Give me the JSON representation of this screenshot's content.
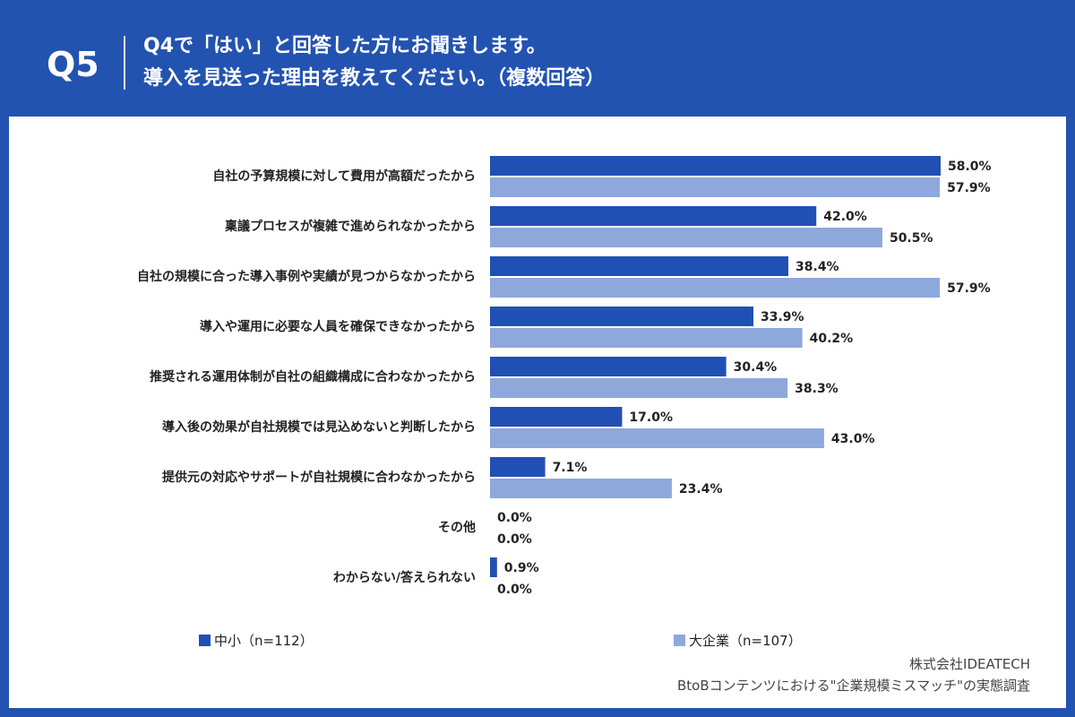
{
  "header": {
    "q_number": "Q5",
    "title_line1": "Q4で「はい」と回答した方にお聞きします。",
    "title_line2": "導入を見送った理由を教えてください。（複数回答）"
  },
  "chart_data": {
    "type": "bar",
    "orientation": "horizontal",
    "xlim": [
      0,
      100
    ],
    "grid": false,
    "legend_placement": "bottom",
    "categories": [
      "自社の予算規模に対して費用が高額だったから",
      "稟議プロセスが複雑で進められなかったから",
      "自社の規模に合った導入事例や実績が見つからなかったから",
      "導入や運用に必要な人員を確保できなかったから",
      "推奨される運用体制が自社の組織構成に合わなかったから",
      "導入後の効果が自社規模では見込めないと判断したから",
      "提供元の対応やサポートが自社規模に合わなかったから",
      "その他",
      "わからない/答えられない"
    ],
    "series": [
      {
        "name": "中小（n=112）",
        "color": "#2150b4",
        "values": [
          58.0,
          42.0,
          38.4,
          33.9,
          30.4,
          17.0,
          7.1,
          0.0,
          0.9
        ]
      },
      {
        "name": "大企業（n=107）",
        "color": "#8ea8dc",
        "values": [
          57.9,
          50.5,
          57.9,
          40.2,
          38.3,
          43.0,
          23.4,
          0.0,
          0.0
        ]
      }
    ]
  },
  "footer": {
    "company": "株式会社IDEATECH",
    "survey": "BtoBコンテンツにおける\"企業規模ミスマッチ\"の実態調査"
  }
}
